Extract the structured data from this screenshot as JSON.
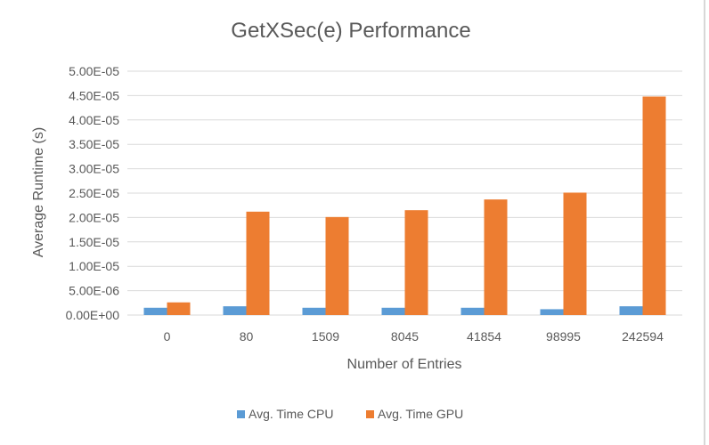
{
  "chart_data": {
    "type": "bar",
    "title": "GetXSec(e) Performance",
    "xlabel": "Number of Entries",
    "ylabel": "Average Runtime (s)",
    "categories": [
      "0",
      "80",
      "1509",
      "8045",
      "41854",
      "98995",
      "242594"
    ],
    "series": [
      {
        "name": "Avg. Time CPU",
        "color": "#5B9BD5",
        "values": [
          1.5e-06,
          1.8e-06,
          1.5e-06,
          1.5e-06,
          1.5e-06,
          1.2e-06,
          1.8e-06
        ]
      },
      {
        "name": "Avg. Time GPU",
        "color": "#ED7D31",
        "values": [
          2.6e-06,
          2.12e-05,
          2.01e-05,
          2.15e-05,
          2.37e-05,
          2.51e-05,
          4.48e-05
        ]
      }
    ],
    "ylim": [
      0,
      5e-05
    ],
    "yticks": [
      "0.00E+00",
      "5.00E-06",
      "1.00E-05",
      "1.50E-05",
      "2.00E-05",
      "2.50E-05",
      "3.00E-05",
      "3.50E-05",
      "4.00E-05",
      "4.50E-05",
      "5.00E-05"
    ],
    "grid": true,
    "legend_position": "bottom"
  }
}
